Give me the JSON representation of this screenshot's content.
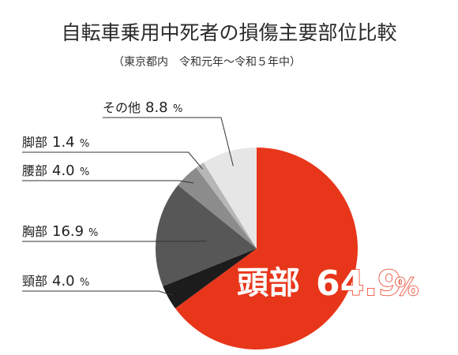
{
  "chart_data": {
    "type": "pie",
    "title": "自転車乗用中死者の損傷主要部位比較",
    "subtitle": "（東京都内　令和元年～令和５年中）",
    "unit": "%",
    "slices": [
      {
        "name": "頭部",
        "pct_label": "64.9",
        "value": 64.9,
        "color": "#e8361a"
      },
      {
        "name": "頸部",
        "pct_label": "4.0",
        "value": 4.0,
        "color": "#1c1c1c"
      },
      {
        "name": "胸部",
        "pct_label": "16.9",
        "value": 16.9,
        "color": "#575757"
      },
      {
        "name": "腰部",
        "pct_label": "4.0",
        "value": 4.0,
        "color": "#8c8c8c"
      },
      {
        "name": "脚部",
        "pct_label": "1.4",
        "value": 1.4,
        "color": "#b6b6b6"
      },
      {
        "name": "その他",
        "pct_label": "8.8",
        "value": 8.8,
        "color": "#e6e6e6"
      }
    ]
  }
}
